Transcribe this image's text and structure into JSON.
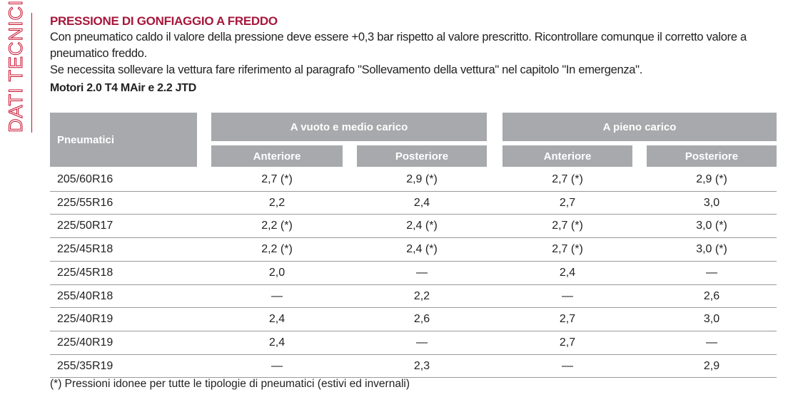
{
  "side_label": "DATI TECNICI",
  "title": "PRESSIONE DI GONFIAGGIO A FREDDO",
  "paragraphs": [
    "Con pneumatico caldo il valore della pressione deve essere +0,3 bar rispetto al valore prescritto. Ricontrollare comunque il corretto valore a pneumatico freddo.",
    "Se necessita sollevare la vettura fare riferimento al paragrafo \"Sollevamento della vettura\" nel capitolo \"In emergenza\"."
  ],
  "subtitle": "Motori 2.0 T4 MAir e 2.2 JTD",
  "table": {
    "header": {
      "first": "Pneumatici",
      "groups": [
        "A vuoto e medio carico",
        "A pieno carico"
      ],
      "subheaders": [
        "Anteriore",
        "Posteriore",
        "Anteriore",
        "Posteriore"
      ]
    },
    "rows": [
      [
        "205/60R16",
        "2,7 (*)",
        "2,9 (*)",
        "2,7 (*)",
        "2,9 (*)"
      ],
      [
        "225/55R16",
        "2,2",
        "2,4",
        "2,7",
        "3,0"
      ],
      [
        "225/50R17",
        "2,2 (*)",
        "2,4 (*)",
        "2,7 (*)",
        "3,0 (*)"
      ],
      [
        "225/45R18",
        "2,2 (*)",
        "2,4 (*)",
        "2,7 (*)",
        "3,0 (*)"
      ],
      [
        "225/45R18",
        "2,0",
        "—",
        "2,4",
        "—"
      ],
      [
        "255/40R18",
        "—",
        "2,2",
        "—",
        "2,6"
      ],
      [
        "225/40R19",
        "2,4",
        "2,6",
        "2,7",
        "3,0"
      ],
      [
        "225/40R19",
        "2,4",
        "—",
        "2,7",
        "—"
      ],
      [
        "255/35R19",
        "—",
        "2,3",
        "—",
        "2,9"
      ]
    ]
  },
  "footnote": "(*) Pressioni idonee per tutte le tipologie di pneumatici (estivi ed invernali)"
}
